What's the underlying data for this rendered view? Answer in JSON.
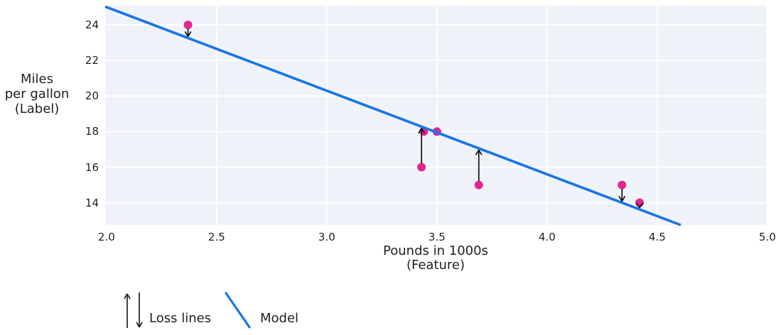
{
  "chart_data": {
    "type": "scatter",
    "xlabel_lines": [
      "Pounds in 1000s",
      "(Feature)"
    ],
    "ylabel_lines": [
      "Miles",
      "per gallon",
      "(Label)"
    ],
    "xlim": [
      1.994,
      4.994
    ],
    "ylim": [
      12.75,
      25.08
    ],
    "xticks": [
      2.0,
      2.5,
      3.0,
      3.5,
      4.0,
      4.5,
      5.0
    ],
    "xtick_labels": [
      "2.0",
      "2.5",
      "3.0",
      "3.5",
      "4.0",
      "4.5",
      "5.0"
    ],
    "yticks": [
      14,
      16,
      18,
      20,
      22,
      24
    ],
    "ytick_labels": [
      "14",
      "16",
      "18",
      "20",
      "22",
      "24"
    ],
    "grid": true,
    "points": [
      {
        "x": 2.37,
        "y": 24
      },
      {
        "x": 3.44,
        "y": 18
      },
      {
        "x": 3.5,
        "y": 18
      },
      {
        "x": 3.43,
        "y": 16
      },
      {
        "x": 3.69,
        "y": 15
      },
      {
        "x": 4.34,
        "y": 15
      },
      {
        "x": 4.42,
        "y": 14
      }
    ],
    "model": {
      "slope": -4.7,
      "intercept": 34.4
    },
    "loss_lines": [
      {
        "x": 2.37,
        "y": 24,
        "direction": "down"
      },
      {
        "x": 3.43,
        "y": 16,
        "direction": "up"
      },
      {
        "x": 3.69,
        "y": 15,
        "direction": "up"
      },
      {
        "x": 4.34,
        "y": 15,
        "direction": "down"
      },
      {
        "x": 4.42,
        "y": 14,
        "direction": "down"
      }
    ],
    "legend": {
      "loss_label": "Loss lines",
      "model_label": "Model"
    },
    "legend_position": "bottom-left",
    "colors": {
      "model_line": "#1a73e8",
      "point": "#e52592",
      "plot_bg": "#eff3f9",
      "grid": "#ffffff",
      "text": "#1f1f1f",
      "arrow": "#111111"
    }
  }
}
